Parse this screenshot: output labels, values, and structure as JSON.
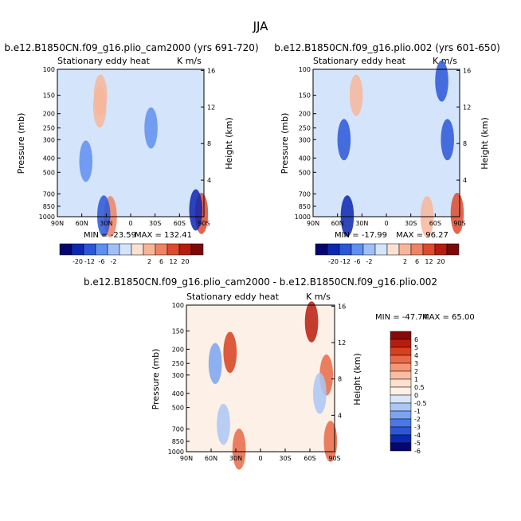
{
  "figure_title": "JJA",
  "chart_data": [
    {
      "type": "heatmap",
      "title": "b.e12.B1850CN.f09_g16.plio_cam2000 (yrs 691-720)",
      "subtitle": "Stationary eddy heat",
      "units": "K m/s",
      "ylabel": "Pressure (mb)",
      "y2label": "Height (km)",
      "x_ticks": [
        "90N",
        "60N",
        "30N",
        "0",
        "30S",
        "60S",
        "90S"
      ],
      "y_ticks": [
        100,
        150,
        200,
        250,
        300,
        400,
        500,
        700,
        850,
        1000
      ],
      "y2_ticks": [
        4,
        8,
        12,
        16
      ],
      "min_label": "MIN = -23.59",
      "max_label": "MAX = 132.41",
      "colorbar_ticks": [
        "-20",
        "-12",
        "-6",
        "-2",
        "2",
        "6",
        "12",
        "20"
      ],
      "features": [
        {
          "lat": 37,
          "p": 150,
          "value": 6
        },
        {
          "lat": 38,
          "p": 180,
          "value": 3
        },
        {
          "lat": 25,
          "p": 1000,
          "value": 12
        },
        {
          "lat": 33,
          "p": 990,
          "value": -6
        },
        {
          "lat": -87,
          "p": 950,
          "value": 20
        },
        {
          "lat": -80,
          "p": 900,
          "value": -12
        },
        {
          "lat": -25,
          "p": 250,
          "value": -2
        },
        {
          "lat": 55,
          "p": 420,
          "value": -2
        }
      ]
    },
    {
      "type": "heatmap",
      "title": "b.e12.B1850CN.f09_g16.plio.002 (yrs 601-650)",
      "subtitle": "Stationary eddy heat",
      "units": "K m/s",
      "ylabel": "Pressure (mb)",
      "y2label": "Height (km)",
      "x_ticks": [
        "90N",
        "60N",
        "30N",
        "0",
        "30S",
        "60S",
        "90S"
      ],
      "y_ticks": [
        100,
        150,
        200,
        250,
        300,
        400,
        500,
        700,
        850,
        1000
      ],
      "y2_ticks": [
        4,
        8,
        12,
        16
      ],
      "min_label": "MIN = -17.99",
      "max_label": "MAX = 96.27",
      "colorbar_ticks": [
        "-20",
        "-12",
        "-6",
        "-2",
        "2",
        "6",
        "12",
        "20"
      ],
      "features": [
        {
          "lat": 37,
          "p": 150,
          "value": 6
        },
        {
          "lat": 52,
          "p": 300,
          "value": -6
        },
        {
          "lat": -75,
          "p": 300,
          "value": -6
        },
        {
          "lat": -68,
          "p": 120,
          "value": -6
        },
        {
          "lat": -87,
          "p": 950,
          "value": 20
        },
        {
          "lat": 48,
          "p": 990,
          "value": -12
        },
        {
          "lat": -50,
          "p": 1000,
          "value": 6
        }
      ]
    },
    {
      "type": "heatmap",
      "title": "b.e12.B1850CN.f09_g16.plio_cam2000 - b.e12.B1850CN.f09_g16.plio.002",
      "subtitle": "Stationary eddy heat",
      "units": "K m/s",
      "ylabel": "Pressure (mb)",
      "y2label": "Height (km)",
      "x_ticks": [
        "90N",
        "60N",
        "30N",
        "0",
        "30S",
        "60S",
        "90S"
      ],
      "y_ticks": [
        100,
        150,
        200,
        250,
        300,
        400,
        500,
        700,
        850,
        1000
      ],
      "y2_ticks": [
        4,
        8,
        12,
        16
      ],
      "min_label": "MIN = -47.74",
      "max_label": "MAX =  65.00",
      "colorbar_ticks": [
        "6",
        "5",
        "4",
        "3",
        "2",
        "1",
        "0.5",
        "0",
        "-0.5",
        "-1",
        "-2",
        "-3",
        "-4",
        "-5",
        "-6"
      ],
      "features": [
        {
          "lat": 37,
          "p": 210,
          "value": 4
        },
        {
          "lat": 26,
          "p": 960,
          "value": 3
        },
        {
          "lat": -62,
          "p": 130,
          "value": 5
        },
        {
          "lat": -80,
          "p": 300,
          "value": 3
        },
        {
          "lat": -85,
          "p": 850,
          "value": 3
        },
        {
          "lat": 55,
          "p": 250,
          "value": -2
        },
        {
          "lat": 45,
          "p": 650,
          "value": -1
        },
        {
          "lat": -72,
          "p": 400,
          "value": -1
        }
      ]
    }
  ]
}
